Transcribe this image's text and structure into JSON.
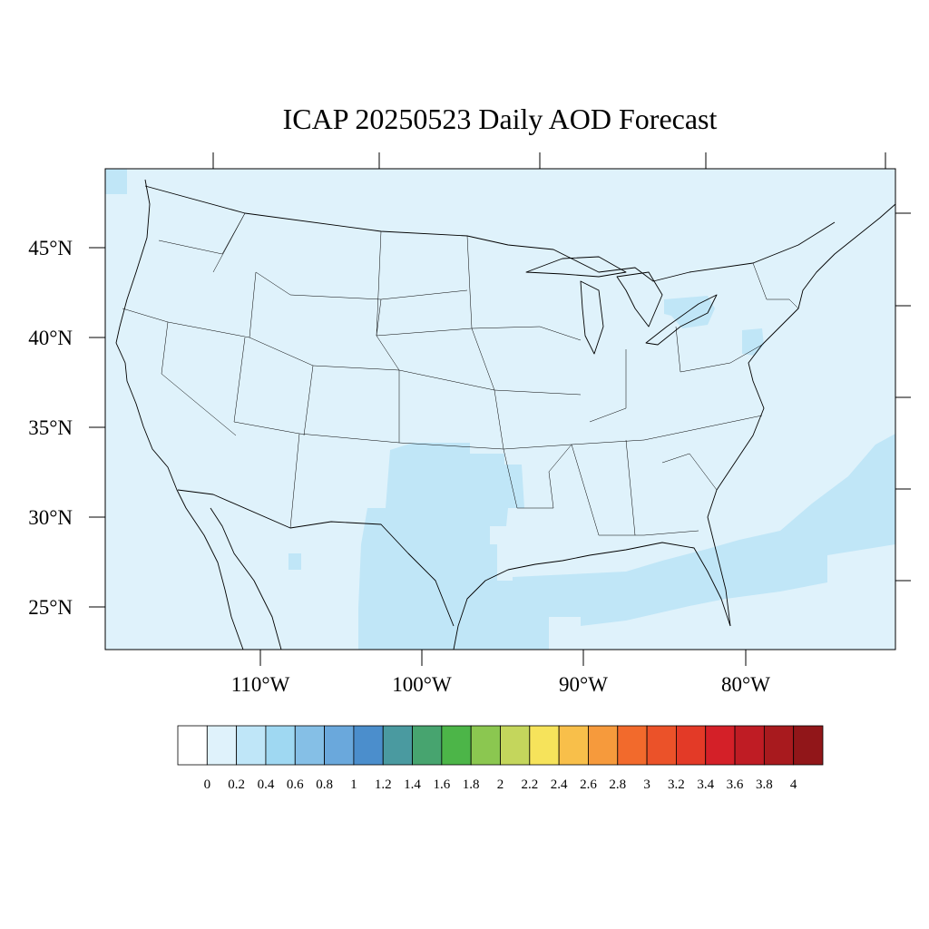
{
  "title": "ICAP 20250523 Daily AOD Forecast",
  "map": {
    "projection": "lambert-conformal",
    "region": "Contiguous United States",
    "lat_ticks": [
      "45°N",
      "40°N",
      "35°N",
      "30°N",
      "25°N"
    ],
    "lon_ticks": [
      "110°W",
      "100°W",
      "90°W",
      "80°W"
    ],
    "background_aod_bin": "0.0–0.2",
    "highlighted_region_aod_bin": "0.2–0.4",
    "highlighted_regions": [
      "Texas and Oklahoma",
      "Gulf of Mexico",
      "Atlantic Ocean off the southeast coast",
      "Lake Erie / Pennsylvania",
      "New Jersey"
    ]
  },
  "colorbar": {
    "labels": [
      "0",
      "0.2",
      "0.4",
      "0.6",
      "0.8",
      "1",
      "1.2",
      "1.4",
      "1.6",
      "1.8",
      "2",
      "2.2",
      "2.4",
      "2.6",
      "2.8",
      "3",
      "3.2",
      "3.4",
      "3.6",
      "3.8",
      "4"
    ],
    "colors": [
      "#ffffff",
      "#dff2fb",
      "#bfe6f8",
      "#9fd8f2",
      "#85bfe6",
      "#6aa8dc",
      "#4b8ecc",
      "#4a9aa0",
      "#47a46f",
      "#4cb548",
      "#8bc750",
      "#c4d65c",
      "#f6e35b",
      "#f8bf4a",
      "#f69a3c",
      "#f26a2c",
      "#eb5229",
      "#e33a27",
      "#d42028",
      "#bf1c24",
      "#a81a1e",
      "#911619"
    ]
  },
  "colors": {
    "low": "#dff2fb",
    "moderate": "#c0e6f7",
    "outline": "#000000"
  }
}
